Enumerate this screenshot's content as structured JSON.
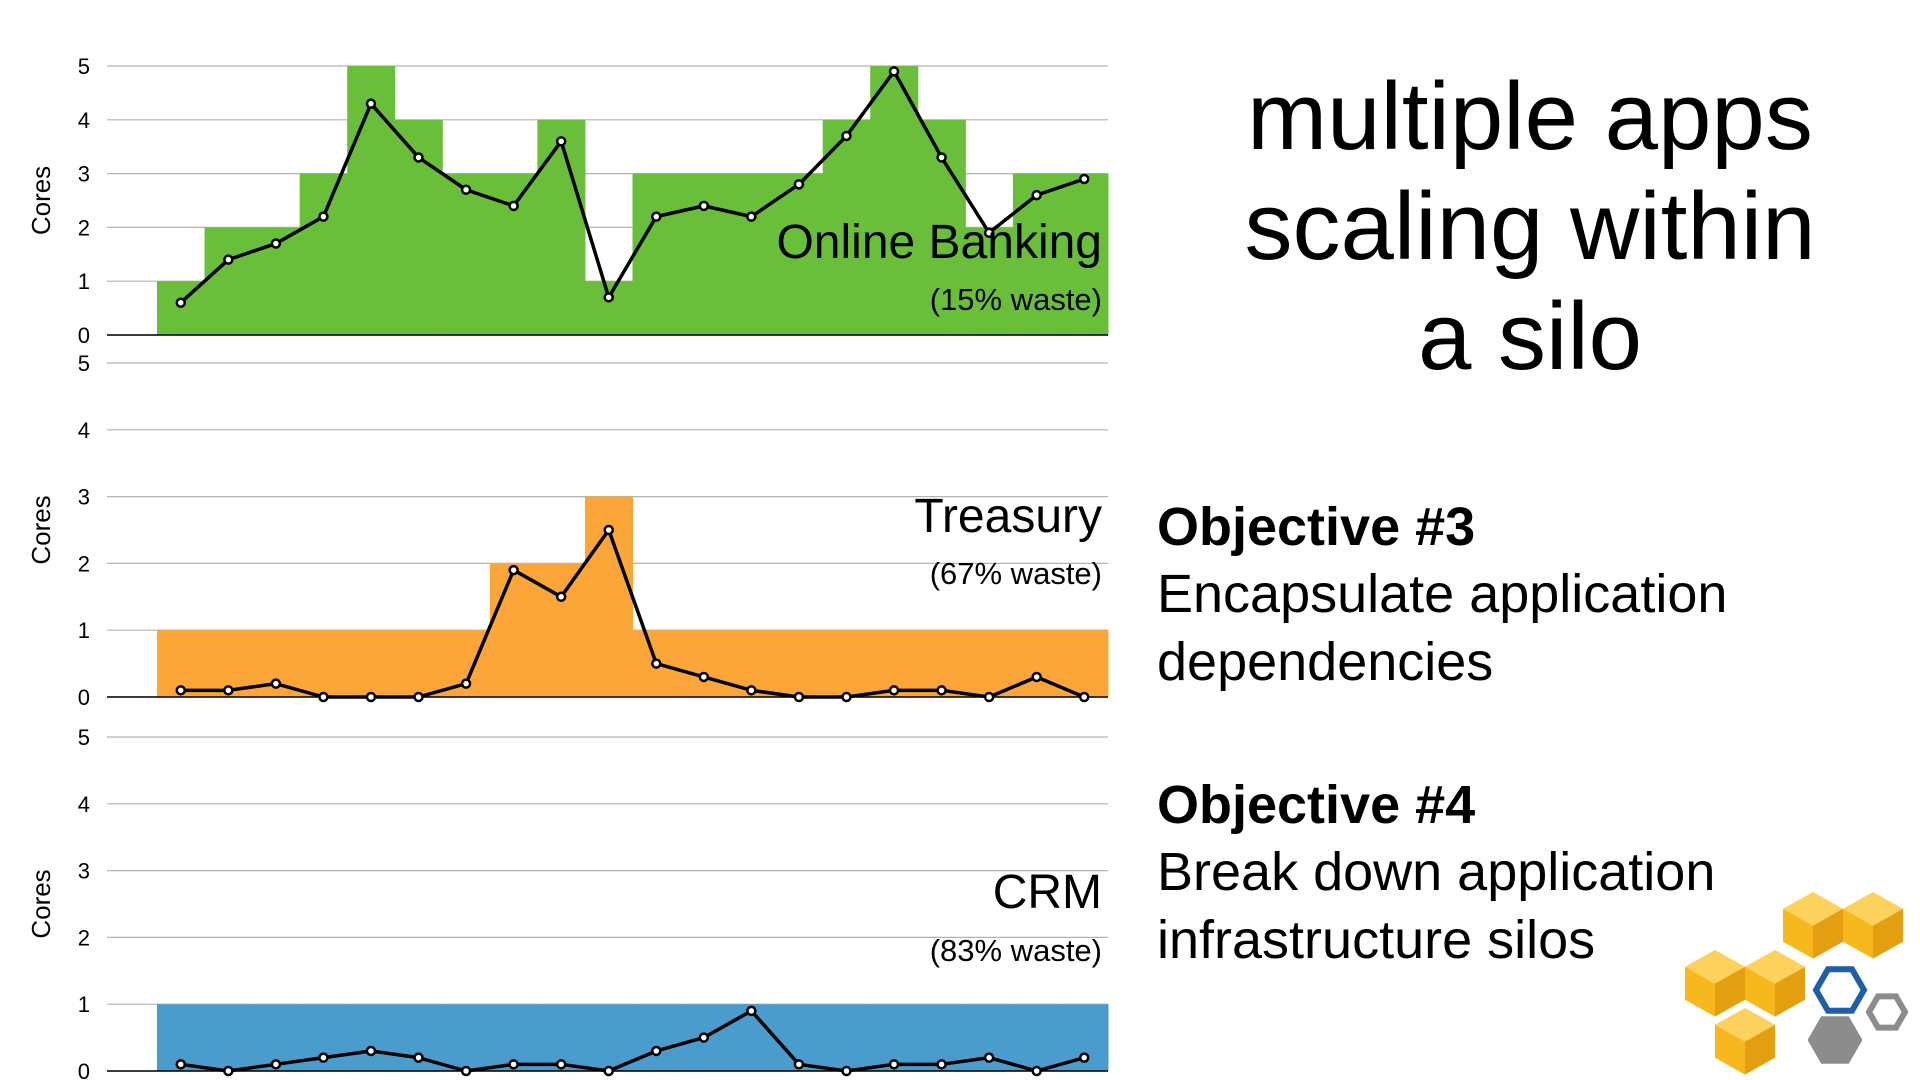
{
  "slide": {
    "title_lines": [
      "multiple apps",
      "scaling within",
      "a silo"
    ],
    "objectives": [
      {
        "heading": "Objective #3",
        "lines": [
          "Encapsulate application",
          "dependencies"
        ]
      },
      {
        "heading": "Objective #4",
        "lines": [
          "Break down application",
          "infrastructure silos"
        ]
      }
    ]
  },
  "logo": {
    "icon": "aws-cubes-logo",
    "colors": [
      "#f7b81e",
      "#1f5fa8",
      "#8c8c8c"
    ]
  },
  "chart_data": [
    {
      "type": "area",
      "name": "Online Banking",
      "waste_label": "(15% waste)",
      "ylabel": "Cores",
      "ylim": [
        0,
        5
      ],
      "yticks": [
        "0",
        "1",
        "2",
        "3",
        "4",
        "5"
      ],
      "fill_color": "#6abf3a",
      "allocated": [
        1,
        2,
        2,
        3,
        5,
        4,
        3,
        3,
        4,
        1,
        3,
        3,
        3,
        3,
        4,
        5,
        4,
        2,
        3,
        3
      ],
      "usage": [
        0.6,
        1.4,
        1.7,
        2.2,
        4.3,
        3.3,
        2.7,
        2.4,
        3.6,
        0.7,
        2.2,
        2.4,
        2.2,
        2.8,
        3.7,
        4.9,
        3.3,
        1.9,
        2.6,
        2.9
      ]
    },
    {
      "type": "area",
      "name": "Treasury",
      "waste_label": "(67% waste)",
      "ylabel": "Cores",
      "ylim": [
        0,
        5
      ],
      "yticks": [
        "0",
        "1",
        "2",
        "3",
        "4",
        "5"
      ],
      "fill_color": "#fca63a",
      "allocated": [
        1,
        1,
        1,
        1,
        1,
        1,
        1,
        2,
        2,
        3,
        1,
        1,
        1,
        1,
        1,
        1,
        1,
        1,
        1,
        1
      ],
      "usage": [
        0.1,
        0.1,
        0.2,
        0,
        0,
        0,
        0.2,
        1.9,
        1.5,
        2.5,
        0.5,
        0.3,
        0.1,
        0,
        0,
        0.1,
        0.1,
        0,
        0.3,
        0
      ]
    },
    {
      "type": "area",
      "name": "CRM",
      "waste_label": "(83% waste)",
      "ylabel": "Cores",
      "ylim": [
        0,
        5
      ],
      "yticks": [
        "0",
        "1",
        "2",
        "3",
        "4",
        "5"
      ],
      "fill_color": "#4a9ccc",
      "allocated": [
        1,
        1,
        1,
        1,
        1,
        1,
        1,
        1,
        1,
        1,
        1,
        1,
        1,
        1,
        1,
        1,
        1,
        1,
        1,
        1
      ],
      "usage": [
        0.1,
        0,
        0.1,
        0.2,
        0.3,
        0.2,
        0,
        0.1,
        0.1,
        0,
        0.3,
        0.5,
        0.9,
        0.1,
        0,
        0.1,
        0.1,
        0.2,
        0,
        0.2
      ]
    }
  ]
}
